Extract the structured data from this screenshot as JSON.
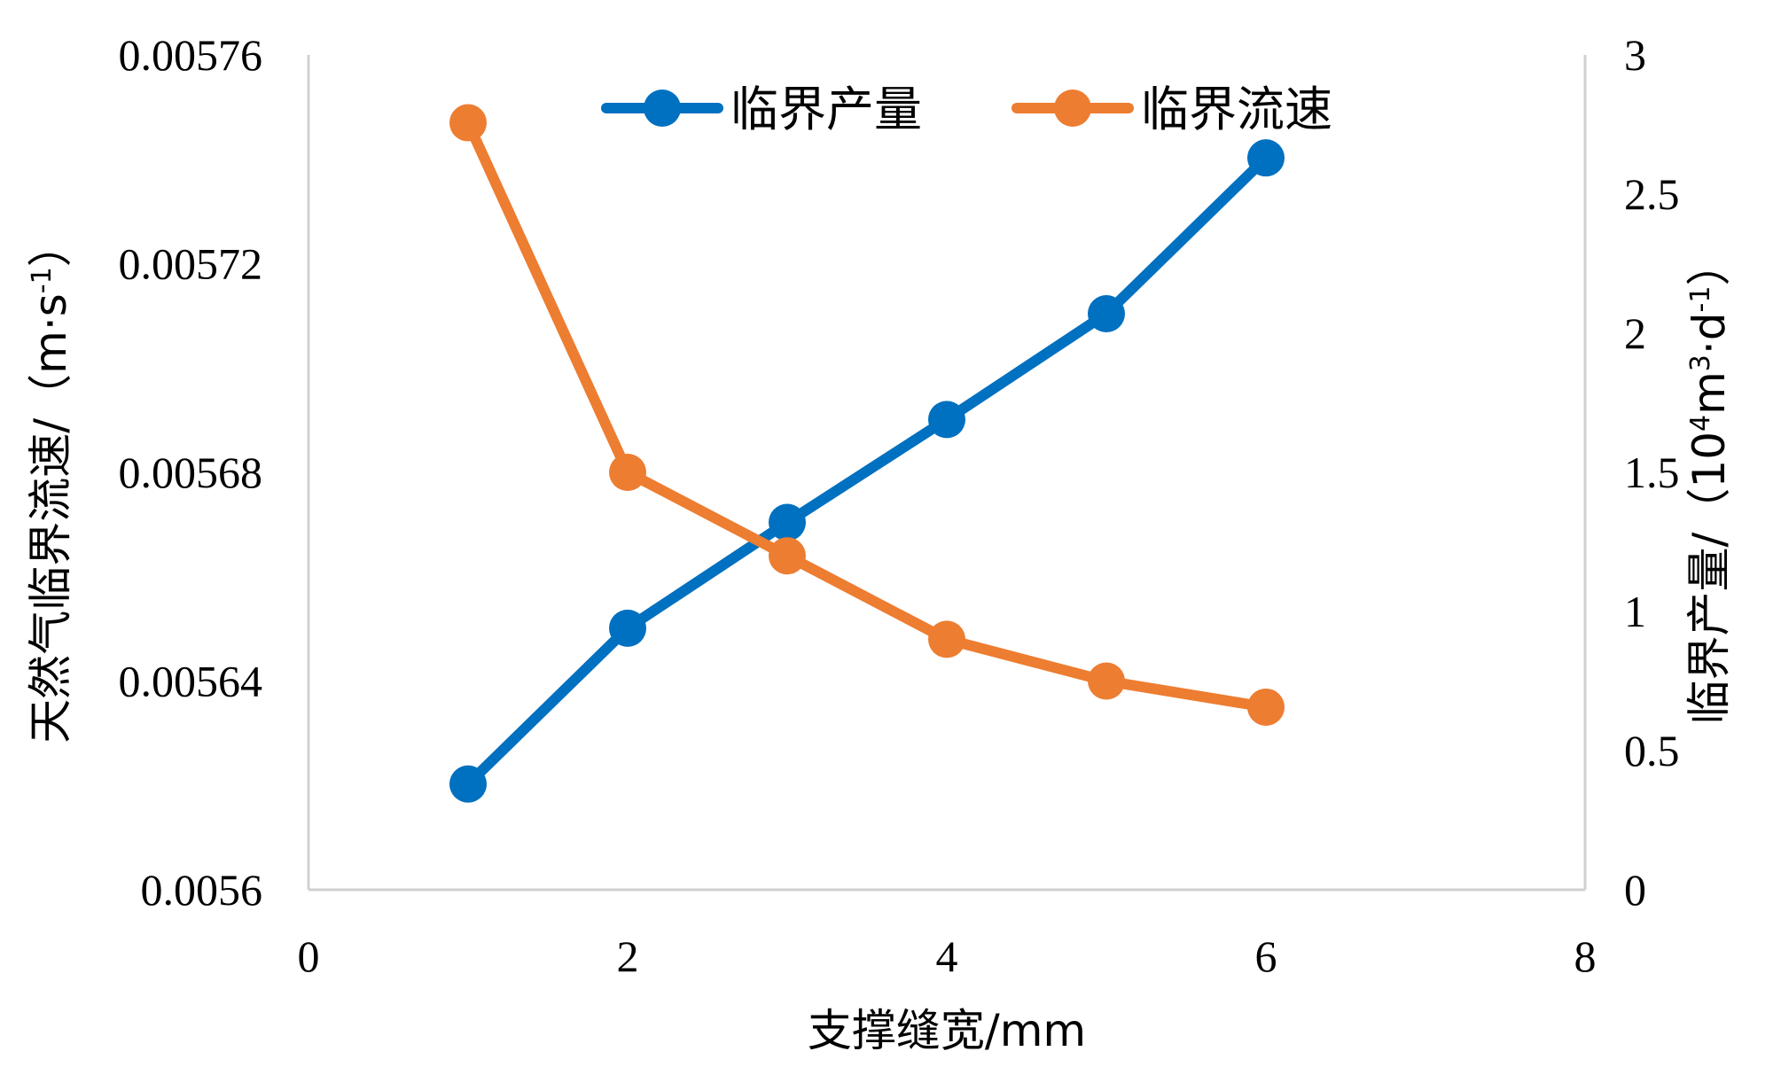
{
  "chart_data": {
    "type": "line",
    "x": [
      1,
      2,
      3,
      4,
      5,
      6
    ],
    "xlabel": "支撑缝宽/mm",
    "xlim": [
      0,
      8
    ],
    "xticks": [
      0,
      2,
      4,
      6,
      8
    ],
    "y_left": {
      "label_main": "天然气临界流速/（m·s",
      "label_sup": "-1",
      "label_end": "）",
      "lim": [
        0.0056,
        0.00576
      ],
      "ticks": [
        0.0056,
        0.00564,
        0.00568,
        0.00572,
        0.00576
      ],
      "tick_labels": [
        "0.0056",
        "0.00564",
        "0.00568",
        "0.00572",
        "0.00576"
      ]
    },
    "y_right": {
      "label_a": "临界产量/（10",
      "label_sup1": "4",
      "label_b": "m",
      "label_sup2": "3",
      "label_c": "·d",
      "label_sup3": "-1",
      "label_d": "）",
      "lim": [
        0,
        3
      ],
      "ticks": [
        0,
        0.5,
        1,
        1.5,
        2,
        2.5,
        3
      ],
      "tick_labels": [
        "0",
        "0.5",
        "1",
        "1.5",
        "2",
        "2.5",
        "3"
      ]
    },
    "series": [
      {
        "name": "临界产量",
        "axis": "right",
        "color": "#0070C0",
        "values": [
          0.38,
          0.94,
          1.32,
          1.69,
          2.07,
          2.63
        ]
      },
      {
        "name": "临界流速",
        "axis": "left",
        "color": "#ED7D31",
        "values": [
          0.005747,
          0.00568,
          0.005664,
          0.005648,
          0.00564,
          0.005635
        ]
      }
    ],
    "legend": "top-center",
    "grid": false
  }
}
